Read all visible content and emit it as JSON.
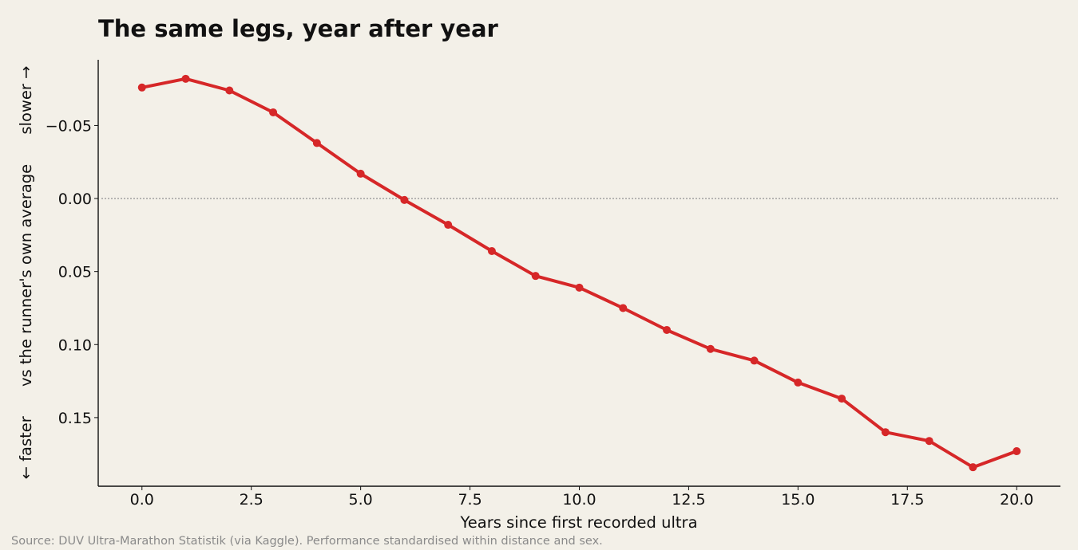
{
  "chart_data": {
    "type": "line",
    "title": "The same legs, year after year",
    "xlabel": "Years since first recorded ultra",
    "ylabel": "← faster      vs the runner's own average      slower →",
    "source": "Source: DUV Ultra-Marathon Statistik (via Kaggle). Performance standardised within distance and sex.",
    "x": [
      0,
      1,
      2,
      3,
      4,
      5,
      6,
      7,
      8,
      9,
      10,
      11,
      12,
      13,
      14,
      15,
      16,
      17,
      18,
      19,
      20
    ],
    "y": [
      -0.076,
      -0.082,
      -0.074,
      -0.059,
      -0.038,
      -0.017,
      0.001,
      0.018,
      0.036,
      0.053,
      0.061,
      0.075,
      0.09,
      0.103,
      0.111,
      0.126,
      0.137,
      0.16,
      0.166,
      0.184,
      0.173
    ],
    "xlim": [
      -1,
      21
    ],
    "ylim": [
      0.197,
      -0.095
    ],
    "y_inverted": true,
    "xticks": [
      0,
      2.5,
      5,
      7.5,
      10,
      12.5,
      15,
      17.5,
      20
    ],
    "xtick_labels": [
      "0.0",
      "2.5",
      "5.0",
      "7.5",
      "10.0",
      "12.5",
      "15.0",
      "17.5",
      "20.0"
    ],
    "yticks": [
      -0.05,
      0,
      0.05,
      0.1,
      0.15
    ],
    "ytick_labels": [
      "−0.05",
      "0.00",
      "0.05",
      "0.10",
      "0.15"
    ],
    "reference_line": {
      "y": 0,
      "style": "dotted",
      "color": "#9a9a9a"
    },
    "line_color": "#d62728",
    "grid": false
  }
}
